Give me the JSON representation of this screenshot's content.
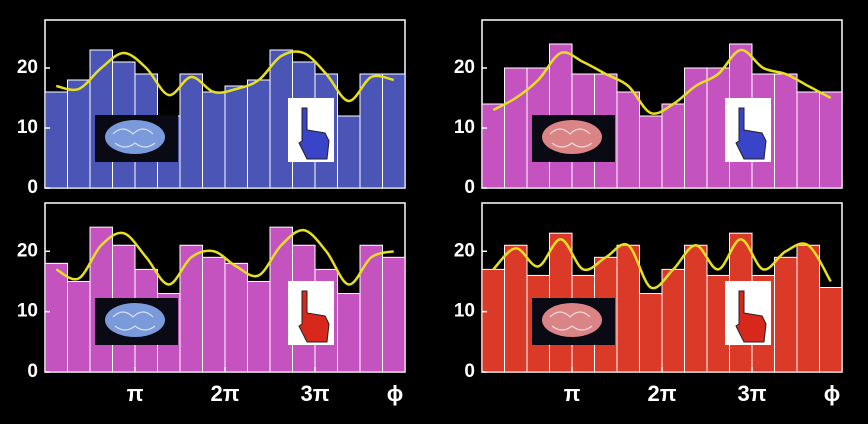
{
  "chart_data": [
    {
      "type": "histogram",
      "bins": [
        0,
        0.25,
        0.5,
        0.75,
        1,
        1.25,
        1.5,
        1.75,
        2,
        2.25,
        2.5,
        2.75,
        3,
        3.25,
        3.5,
        3.75,
        4
      ],
      "counts": [
        16,
        18,
        23,
        21,
        19,
        12,
        19,
        16,
        17,
        18,
        23,
        21,
        19,
        12,
        19,
        19
      ],
      "color": "#4a55b6",
      "curve": {
        "x": [
          0.125,
          0.375,
          0.625,
          0.875,
          1.125,
          1.375,
          1.625,
          1.875,
          2.125,
          2.375,
          2.625,
          2.875,
          3.125,
          3.375,
          3.625,
          3.875
        ],
        "values": [
          17,
          16.5,
          20,
          22.5,
          20,
          15.5,
          18.5,
          16,
          16.5,
          18,
          22,
          22.5,
          19,
          14.5,
          18.5,
          18
        ],
        "color": "#e6e020"
      },
      "xlim": [
        0,
        4
      ],
      "ylim": [
        0,
        28
      ],
      "yticks": [
        0,
        10,
        20
      ]
    },
    {
      "type": "histogram",
      "bins": [
        0,
        0.25,
        0.5,
        0.75,
        1,
        1.25,
        1.5,
        1.75,
        2,
        2.25,
        2.5,
        2.75,
        3,
        3.25,
        3.5,
        3.75,
        4
      ],
      "counts": [
        14,
        20,
        20,
        24,
        19,
        19,
        16,
        12,
        14,
        20,
        20,
        24,
        19,
        19,
        16,
        16
      ],
      "color": "#c452bf",
      "curve": {
        "x": [
          0.125,
          0.375,
          0.625,
          0.875,
          1.125,
          1.375,
          1.625,
          1.875,
          2.125,
          2.375,
          2.625,
          2.875,
          3.125,
          3.375,
          3.625,
          3.875
        ],
        "values": [
          13,
          15,
          18,
          22.5,
          21,
          19,
          17,
          12.5,
          14,
          17,
          19,
          23,
          20,
          19,
          17,
          15
        ],
        "color": "#e6e020"
      },
      "xlim": [
        0,
        4
      ],
      "ylim": [
        0,
        28
      ],
      "yticks": [
        0,
        10,
        20
      ]
    },
    {
      "type": "histogram",
      "bins": [
        0,
        0.25,
        0.5,
        0.75,
        1,
        1.25,
        1.5,
        1.75,
        2,
        2.25,
        2.5,
        2.75,
        3,
        3.25,
        3.5,
        3.75,
        4
      ],
      "counts": [
        18,
        15,
        24,
        21,
        17,
        13,
        21,
        19,
        18,
        15,
        24,
        21,
        17,
        13,
        21,
        19
      ],
      "color": "#c452bf",
      "curve": {
        "x": [
          0.125,
          0.375,
          0.625,
          0.875,
          1.125,
          1.375,
          1.625,
          1.875,
          2.125,
          2.375,
          2.625,
          2.875,
          3.125,
          3.375,
          3.625,
          3.875
        ],
        "values": [
          17,
          15.5,
          21,
          23,
          19,
          14.5,
          19,
          20,
          17.5,
          16,
          21,
          23.5,
          20,
          14.5,
          19,
          20
        ],
        "color": "#e6e020"
      },
      "xlim": [
        0,
        4
      ],
      "ylim": [
        0,
        28
      ],
      "yticks": [
        0,
        10,
        20
      ],
      "xticks": [
        {
          "value": 1,
          "label": "π"
        },
        {
          "value": 2,
          "label": "2π"
        },
        {
          "value": 3,
          "label": "3π"
        }
      ],
      "x_label": "ϕ"
    },
    {
      "type": "histogram",
      "bins": [
        0,
        0.25,
        0.5,
        0.75,
        1,
        1.25,
        1.5,
        1.75,
        2,
        2.25,
        2.5,
        2.75,
        3,
        3.25,
        3.5,
        3.75,
        4
      ],
      "counts": [
        17,
        21,
        16,
        23,
        16,
        19,
        21,
        13,
        17,
        21,
        16,
        23,
        16,
        19,
        21,
        14
      ],
      "color": "#dc3a28",
      "curve": {
        "x": [
          0.125,
          0.375,
          0.625,
          0.875,
          1.125,
          1.375,
          1.625,
          1.875,
          2.125,
          2.375,
          2.625,
          2.875,
          3.125,
          3.375,
          3.625,
          3.875
        ],
        "values": [
          17,
          20.5,
          17.5,
          22,
          17,
          19,
          21,
          14,
          17,
          21,
          17,
          22,
          17,
          20,
          21,
          15
        ],
        "color": "#e6e020"
      },
      "xlim": [
        0,
        4
      ],
      "ylim": [
        0,
        28
      ],
      "yticks": [
        0,
        10,
        20
      ],
      "xticks": [
        {
          "value": 1,
          "label": "π"
        },
        {
          "value": 2,
          "label": "2π"
        },
        {
          "value": 3,
          "label": "3π"
        }
      ],
      "x_label": "ϕ"
    }
  ]
}
